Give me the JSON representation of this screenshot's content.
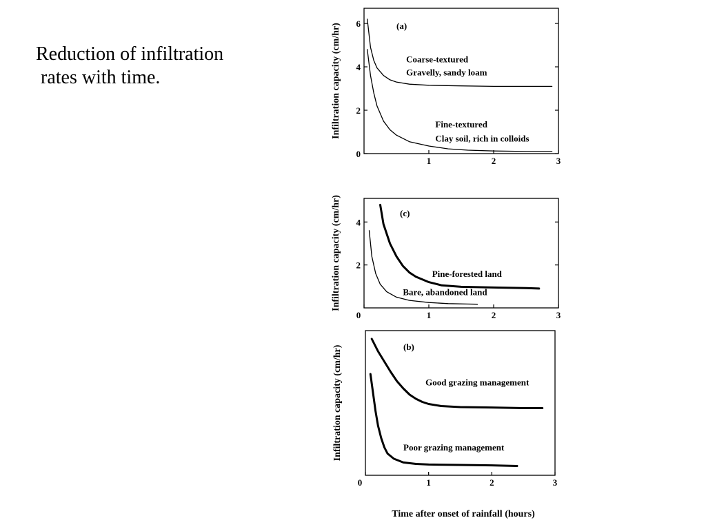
{
  "slide": {
    "caption_line1": "Reduction of infiltration",
    "caption_line2": "rates with time."
  },
  "common_xlabel": "Time after onset of rainfall (hours)",
  "chart_data": [
    {
      "type": "line",
      "panel_label": "(a)",
      "ylabel": "Infiltration capacity (cm/hr)",
      "xlim": [
        0,
        3
      ],
      "ylim": [
        0,
        6.7
      ],
      "xticks": [
        "1",
        "2",
        "3"
      ],
      "yticks": [
        {
          "v": 0,
          "label": "0"
        },
        {
          "v": 2,
          "label": "2"
        },
        {
          "v": 4,
          "label": "4"
        },
        {
          "v": 6,
          "label": "6"
        }
      ],
      "series": [
        {
          "name": "Coarse-textured Gravelly, sandy loam",
          "stroke": "thin",
          "points": [
            [
              0.05,
              6.2
            ],
            [
              0.1,
              4.9
            ],
            [
              0.15,
              4.3
            ],
            [
              0.2,
              3.95
            ],
            [
              0.3,
              3.6
            ],
            [
              0.4,
              3.4
            ],
            [
              0.5,
              3.3
            ],
            [
              0.7,
              3.2
            ],
            [
              1.0,
              3.15
            ],
            [
              1.5,
              3.12
            ],
            [
              2.0,
              3.1
            ],
            [
              2.5,
              3.1
            ],
            [
              2.9,
              3.1
            ]
          ]
        },
        {
          "name": "Fine-textured Clay soil, rich in colloids",
          "stroke": "thin",
          "points": [
            [
              0.05,
              4.8
            ],
            [
              0.1,
              3.6
            ],
            [
              0.15,
              2.8
            ],
            [
              0.2,
              2.2
            ],
            [
              0.3,
              1.5
            ],
            [
              0.4,
              1.1
            ],
            [
              0.5,
              0.85
            ],
            [
              0.7,
              0.55
            ],
            [
              1.0,
              0.35
            ],
            [
              1.3,
              0.22
            ],
            [
              1.6,
              0.16
            ],
            [
              2.0,
              0.12
            ],
            [
              2.5,
              0.1
            ],
            [
              2.9,
              0.1
            ]
          ]
        }
      ],
      "annotations": [
        {
          "text": "Coarse-textured",
          "x": 0.65,
          "y": 4.2
        },
        {
          "text": "Gravelly, sandy loam",
          "x": 0.65,
          "y": 3.6
        },
        {
          "text": "Fine-textured",
          "x": 1.1,
          "y": 1.2
        },
        {
          "text": "Clay soil, rich in colloids",
          "x": 1.1,
          "y": 0.55
        }
      ]
    },
    {
      "type": "line",
      "panel_label": "(c)",
      "ylabel": "Infiltration capacity (cm/hr)",
      "xlim": [
        0,
        3
      ],
      "ylim": [
        0,
        5.1
      ],
      "xticks": [
        "0",
        "1",
        "2",
        "3"
      ],
      "yticks": [
        {
          "v": 2,
          "label": "2"
        },
        {
          "v": 4,
          "label": "4"
        }
      ],
      "series": [
        {
          "name": "Pine-forested land",
          "stroke": "thick",
          "points": [
            [
              0.25,
              4.8
            ],
            [
              0.3,
              3.9
            ],
            [
              0.4,
              3.0
            ],
            [
              0.5,
              2.4
            ],
            [
              0.6,
              1.95
            ],
            [
              0.7,
              1.65
            ],
            [
              0.8,
              1.45
            ],
            [
              1.0,
              1.2
            ],
            [
              1.2,
              1.05
            ],
            [
              1.5,
              0.98
            ],
            [
              2.0,
              0.95
            ],
            [
              2.5,
              0.92
            ],
            [
              2.7,
              0.9
            ]
          ]
        },
        {
          "name": "Bare, abandoned land",
          "stroke": "thin",
          "points": [
            [
              0.08,
              3.6
            ],
            [
              0.12,
              2.4
            ],
            [
              0.18,
              1.6
            ],
            [
              0.25,
              1.1
            ],
            [
              0.35,
              0.75
            ],
            [
              0.5,
              0.5
            ],
            [
              0.7,
              0.35
            ],
            [
              1.0,
              0.25
            ],
            [
              1.3,
              0.2
            ],
            [
              1.6,
              0.18
            ],
            [
              1.75,
              0.17
            ]
          ]
        }
      ],
      "annotations": [
        {
          "text": "Pine-forested land",
          "x": 1.05,
          "y": 1.45
        },
        {
          "text": "Bare, abandoned land",
          "x": 0.6,
          "y": 0.6
        }
      ]
    },
    {
      "type": "line",
      "panel_label": "(b)",
      "ylabel": "Infiltration capacity (cm/hr)",
      "xlim": [
        0,
        3
      ],
      "ylim": [
        0,
        7
      ],
      "xticks": [
        "0",
        "1",
        "2",
        "3"
      ],
      "yticks": [],
      "series": [
        {
          "name": "Good grazing management",
          "stroke": "thick",
          "points": [
            [
              0.1,
              6.6
            ],
            [
              0.2,
              6.0
            ],
            [
              0.3,
              5.5
            ],
            [
              0.4,
              5.0
            ],
            [
              0.5,
              4.55
            ],
            [
              0.6,
              4.2
            ],
            [
              0.7,
              3.9
            ],
            [
              0.8,
              3.7
            ],
            [
              0.9,
              3.55
            ],
            [
              1.0,
              3.45
            ],
            [
              1.2,
              3.35
            ],
            [
              1.5,
              3.3
            ],
            [
              2.0,
              3.28
            ],
            [
              2.5,
              3.25
            ],
            [
              2.8,
              3.25
            ]
          ]
        },
        {
          "name": "Poor grazing management",
          "stroke": "thick",
          "points": [
            [
              0.08,
              4.9
            ],
            [
              0.12,
              4.0
            ],
            [
              0.16,
              3.1
            ],
            [
              0.2,
              2.4
            ],
            [
              0.25,
              1.8
            ],
            [
              0.3,
              1.35
            ],
            [
              0.35,
              1.05
            ],
            [
              0.45,
              0.8
            ],
            [
              0.6,
              0.62
            ],
            [
              0.8,
              0.55
            ],
            [
              1.0,
              0.52
            ],
            [
              1.5,
              0.5
            ],
            [
              2.0,
              0.48
            ],
            [
              2.4,
              0.45
            ]
          ]
        }
      ],
      "annotations": [
        {
          "text": "Good grazing management",
          "x": 0.95,
          "y": 4.35
        },
        {
          "text": "Poor grazing management",
          "x": 0.6,
          "y": 1.2
        }
      ]
    }
  ]
}
